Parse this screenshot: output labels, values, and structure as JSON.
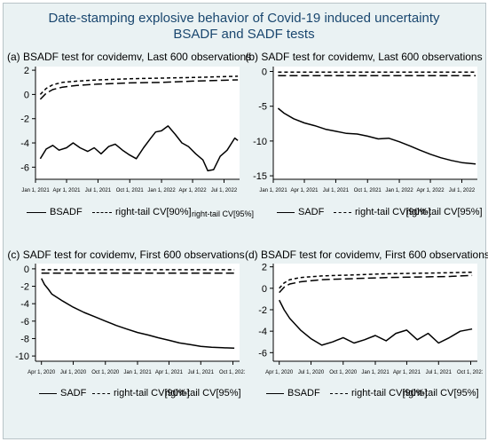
{
  "figure": {
    "title_line1": "Date-stamping explosive behavior of Covid-19 induced uncertainty",
    "title_line2": "BSADF and SADF tests",
    "colors": {
      "background": "#eaf2f3",
      "plot": "#ffffff",
      "title": "#1a476f",
      "series": "#000000"
    }
  },
  "chart_data": [
    {
      "type": "line",
      "title": "(a) BSADF test for covidemv, Last 600 observations",
      "x_ticks": [
        "Jan 1, 2021",
        "Apr 1, 2021",
        "Jul 1, 2021",
        "Oct 1, 2021",
        "Jan 1, 2022",
        "Apr 1, 2022",
        "Jul 1, 2022"
      ],
      "x_range": [
        "Jan 1, 2021",
        "Aug 15, 2022"
      ],
      "y_ticks": [
        2,
        0,
        -2,
        -4,
        -6
      ],
      "ylim": [
        -7,
        2.3
      ],
      "grid": false,
      "legend": {
        "position": "bottom",
        "entries": [
          "BSADF",
          "right-tail CV[90%]",
          "right-tail CV[95%]"
        ]
      },
      "series": [
        {
          "name": "BSADF",
          "style": "solid",
          "x": [
            "Jan 15, 2021",
            "Feb 1, 2021",
            "Feb 20, 2021",
            "Mar 10, 2021",
            "Apr 1, 2021",
            "Apr 20, 2021",
            "May 10, 2021",
            "Jun 1, 2021",
            "Jun 20, 2021",
            "Jul 10, 2021",
            "Aug 1, 2021",
            "Aug 20, 2021",
            "Sep 10, 2021",
            "Oct 1, 2021",
            "Oct 20, 2021",
            "Nov 10, 2021",
            "Dec 1, 2021",
            "Dec 15, 2021",
            "Jan 1, 2022",
            "Jan 20, 2022",
            "Feb 10, 2022",
            "Mar 1, 2022",
            "Mar 20, 2022",
            "Apr 10, 2022",
            "May 1, 2022",
            "May 15, 2022",
            "Jun 1, 2022",
            "Jun 20, 2022",
            "Jul 10, 2022",
            "Aug 1, 2022",
            "Aug 10, 2022"
          ],
          "y": [
            -5.3,
            -4.5,
            -4.2,
            -4.6,
            -4.4,
            -4.0,
            -4.4,
            -4.7,
            -4.4,
            -4.9,
            -4.3,
            -4.1,
            -4.6,
            -5.0,
            -5.3,
            -4.4,
            -3.6,
            -3.1,
            -3.0,
            -2.6,
            -3.3,
            -4.0,
            -4.3,
            -4.9,
            -5.4,
            -6.3,
            -6.2,
            -5.1,
            -4.6,
            -3.6,
            -3.8
          ]
        },
        {
          "name": "right-tail CV[90%]",
          "style": "long-dash",
          "x": [
            "Jan 15, 2021",
            "Feb 1, 2021",
            "Feb 20, 2021",
            "Mar 20, 2021",
            "May 1, 2021",
            "Jul 1, 2021",
            "Oct 1, 2021",
            "Jan 1, 2022",
            "Apr 1, 2022",
            "Aug 10, 2022"
          ],
          "y": [
            -0.4,
            0.1,
            0.4,
            0.6,
            0.75,
            0.85,
            0.95,
            1.0,
            1.1,
            1.2
          ]
        },
        {
          "name": "right-tail CV[95%]",
          "style": "short-dash",
          "x": [
            "Jan 15, 2021",
            "Feb 1, 2021",
            "Feb 20, 2021",
            "Mar 20, 2021",
            "May 1, 2021",
            "Jul 1, 2021",
            "Oct 1, 2021",
            "Jan 1, 2022",
            "Apr 1, 2022",
            "Aug 10, 2022"
          ],
          "y": [
            0.0,
            0.5,
            0.8,
            1.0,
            1.1,
            1.2,
            1.3,
            1.35,
            1.4,
            1.5
          ]
        }
      ]
    },
    {
      "type": "line",
      "title": "(b) SADF test for covidemv, Last 600 observations",
      "x_ticks": [
        "Jan 1, 2021",
        "Apr 1, 2021",
        "Jul 1, 2021",
        "Oct 1, 2021",
        "Jan 1, 2022",
        "Apr 1, 2022",
        "Jul 1, 2022"
      ],
      "x_range": [
        "Jan 1, 2021",
        "Aug 15, 2022"
      ],
      "y_ticks": [
        0,
        -5,
        -10,
        -15
      ],
      "ylim": [
        -15.5,
        0.7
      ],
      "grid": false,
      "legend": {
        "position": "bottom",
        "entries": [
          "SADF",
          "right-tail CV[90%]",
          "right-tail CV[95%]"
        ]
      },
      "series": [
        {
          "name": "SADF",
          "style": "solid",
          "x": [
            "Jan 15, 2021",
            "Feb 1, 2021",
            "Mar 1, 2021",
            "Apr 1, 2021",
            "May 1, 2021",
            "Jun 1, 2021",
            "Jul 1, 2021",
            "Aug 1, 2021",
            "Sep 1, 2021",
            "Oct 1, 2021",
            "Nov 1, 2021",
            "Dec 1, 2021",
            "Jan 1, 2022",
            "Feb 1, 2022",
            "Mar 1, 2022",
            "Apr 1, 2022",
            "May 1, 2022",
            "Jun 1, 2022",
            "Jul 1, 2022",
            "Aug 10, 2022"
          ],
          "y": [
            -5.3,
            -6.0,
            -6.8,
            -7.4,
            -7.8,
            -8.3,
            -8.6,
            -8.9,
            -9.0,
            -9.3,
            -9.7,
            -9.6,
            -10.1,
            -10.7,
            -11.3,
            -11.9,
            -12.4,
            -12.8,
            -13.1,
            -13.3
          ]
        },
        {
          "name": "right-tail CV[90%]",
          "style": "long-dash",
          "x": [
            "Jan 15, 2021",
            "Aug 10, 2022"
          ],
          "y": [
            -0.6,
            -0.6
          ]
        },
        {
          "name": "right-tail CV[95%]",
          "style": "short-dash",
          "x": [
            "Jan 15, 2021",
            "Aug 10, 2022"
          ],
          "y": [
            -0.1,
            -0.1
          ]
        }
      ]
    },
    {
      "type": "line",
      "title": "(c) SADF test for covidemv, First 600 observations",
      "x_ticks": [
        "Apr 1, 2020",
        "Jul 1, 2020",
        "Oct 1, 2020",
        "Jan 1, 2021",
        "Apr 1, 2021",
        "Jul 1, 2021",
        "Oct 1, 2021"
      ],
      "x_range": [
        "Mar 15, 2020",
        "Oct 20, 2021"
      ],
      "y_ticks": [
        0,
        -2,
        -4,
        -6,
        -8,
        -10
      ],
      "ylim": [
        -10.6,
        0.6
      ],
      "grid": false,
      "legend": {
        "position": "bottom",
        "entries": [
          "SADF",
          "right-tail CV[90%]",
          "right-tail CV[95%]"
        ]
      },
      "series": [
        {
          "name": "SADF",
          "style": "solid",
          "x": [
            "Apr 1, 2020",
            "Apr 10, 2020",
            "Apr 20, 2020",
            "May 1, 2020",
            "Jun 1, 2020",
            "Jul 1, 2020",
            "Aug 1, 2020",
            "Sep 1, 2020",
            "Oct 1, 2020",
            "Nov 1, 2020",
            "Dec 1, 2020",
            "Jan 1, 2021",
            "Feb 1, 2021",
            "Mar 1, 2021",
            "Apr 1, 2021",
            "May 1, 2021",
            "Jun 1, 2021",
            "Jul 1, 2021",
            "Aug 1, 2021",
            "Sep 1, 2021",
            "Oct 5, 2021"
          ],
          "y": [
            -1.1,
            -1.8,
            -2.3,
            -2.9,
            -3.7,
            -4.4,
            -5.0,
            -5.5,
            -6.0,
            -6.5,
            -6.9,
            -7.3,
            -7.6,
            -7.9,
            -8.2,
            -8.5,
            -8.7,
            -8.9,
            -9.0,
            -9.05,
            -9.1
          ]
        },
        {
          "name": "right-tail CV[90%]",
          "style": "long-dash",
          "x": [
            "Apr 1, 2020",
            "Oct 5, 2021"
          ],
          "y": [
            -0.5,
            -0.5
          ]
        },
        {
          "name": "right-tail CV[95%]",
          "style": "short-dash",
          "x": [
            "Apr 1, 2020",
            "Oct 5, 2021"
          ],
          "y": [
            -0.1,
            -0.1
          ]
        }
      ]
    },
    {
      "type": "line",
      "title": "(d) BSADF test for covidemv, First 600 observations",
      "x_ticks": [
        "Apr 1, 2020",
        "Jul 1, 2020",
        "Oct 1, 2020",
        "Jan 1, 2021",
        "Apr 1, 2021",
        "Jul 1, 2021",
        "Oct 1, 2021"
      ],
      "x_range": [
        "Mar 15, 2020",
        "Oct 20, 2021"
      ],
      "y_ticks": [
        2,
        0,
        -2,
        -4,
        -6
      ],
      "ylim": [
        -6.8,
        2.3
      ],
      "grid": false,
      "legend": {
        "position": "bottom",
        "entries": [
          "BSADF",
          "right-tail CV[90%]",
          "right-tail CV[95%]"
        ]
      },
      "series": [
        {
          "name": "BSADF",
          "style": "solid",
          "x": [
            "Apr 1, 2020",
            "Apr 15, 2020",
            "May 1, 2020",
            "Jun 1, 2020",
            "Jul 1, 2020",
            "Aug 1, 2020",
            "Sep 1, 2020",
            "Oct 1, 2020",
            "Nov 1, 2020",
            "Dec 1, 2020",
            "Jan 1, 2021",
            "Feb 1, 2021",
            "Mar 1, 2021",
            "Apr 1, 2021",
            "May 1, 2021",
            "Jun 1, 2021",
            "Jul 1, 2021",
            "Aug 1, 2021",
            "Sep 1, 2021",
            "Oct 5, 2021"
          ],
          "y": [
            -1.1,
            -2.0,
            -2.8,
            -3.9,
            -4.7,
            -5.3,
            -5.0,
            -4.6,
            -5.1,
            -4.8,
            -4.4,
            -4.9,
            -4.2,
            -3.9,
            -4.8,
            -4.2,
            -5.1,
            -4.6,
            -4.0,
            -3.8
          ]
        },
        {
          "name": "right-tail CV[90%]",
          "style": "long-dash",
          "x": [
            "Apr 1, 2020",
            "Apr 15, 2020",
            "May 1, 2020",
            "Jun 1, 2020",
            "Aug 1, 2020",
            "Nov 1, 2020",
            "Feb 1, 2021",
            "May 1, 2021",
            "Aug 1, 2021",
            "Oct 5, 2021"
          ],
          "y": [
            -0.4,
            0.1,
            0.4,
            0.6,
            0.8,
            0.9,
            1.0,
            1.05,
            1.1,
            1.2
          ]
        },
        {
          "name": "right-tail CV[95%]",
          "style": "short-dash",
          "x": [
            "Apr 1, 2020",
            "Apr 15, 2020",
            "May 1, 2020",
            "Jun 1, 2020",
            "Aug 1, 2020",
            "Nov 1, 2020",
            "Feb 1, 2021",
            "May 1, 2021",
            "Aug 1, 2021",
            "Oct 5, 2021"
          ],
          "y": [
            0.0,
            0.5,
            0.8,
            1.0,
            1.15,
            1.25,
            1.35,
            1.4,
            1.45,
            1.5
          ]
        }
      ]
    }
  ]
}
